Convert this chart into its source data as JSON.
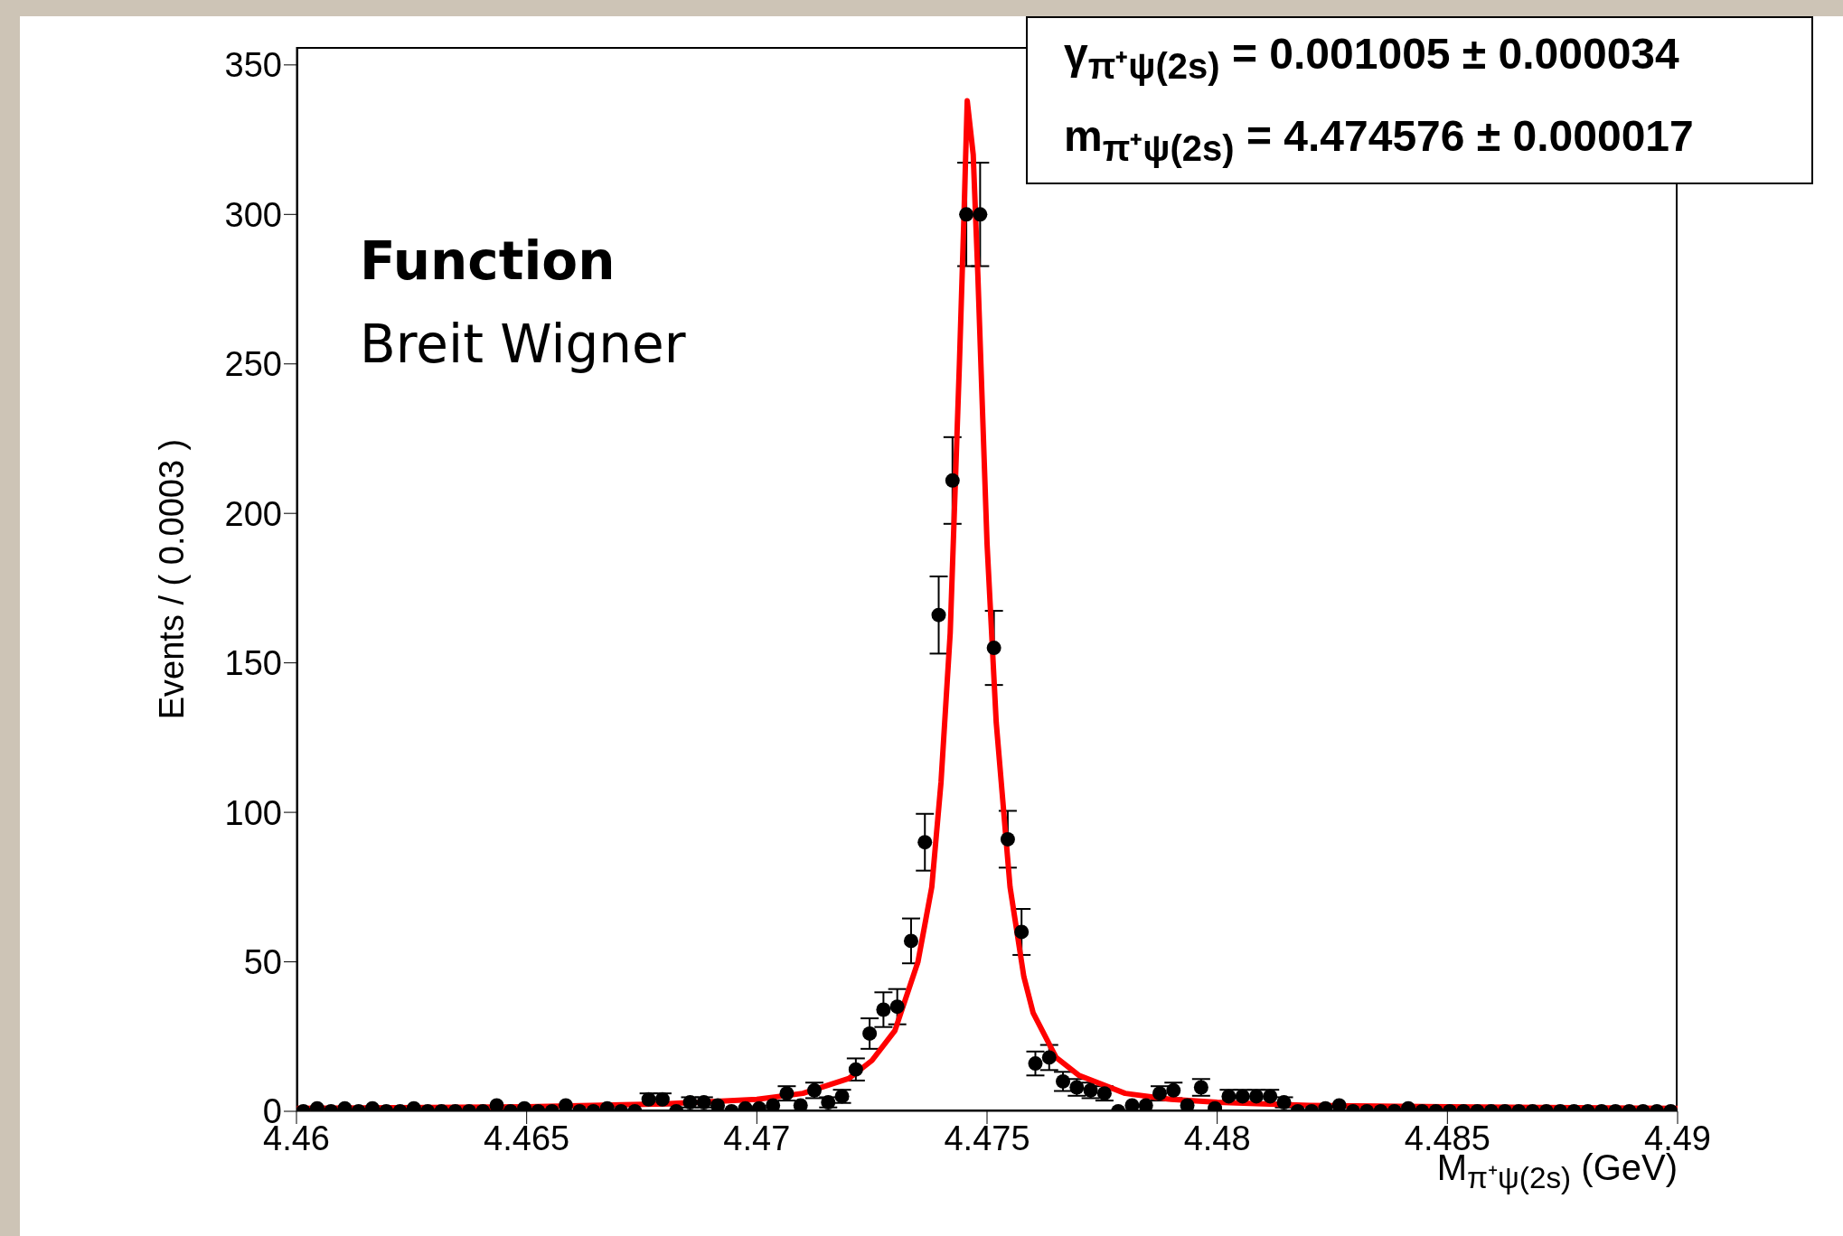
{
  "chart_data": {
    "type": "scatter",
    "xlabel": "M$_{π⁺ψ(2s)}$ (GeV)",
    "ylabel": "Events / ( 0.0003 )",
    "annotations": [
      "γ$_{π⁺ψ(2s)}$ =  0.001005 ± 0.000034",
      "m$_{π⁺ψ(2s)}$ =  4.474576 ± 0.000017",
      "Function",
      "Breit Wigner"
    ],
    "xlim": [
      4.46,
      4.49
    ],
    "xticks": [
      4.46,
      4.465,
      4.47,
      4.475,
      4.48,
      4.485,
      4.49
    ],
    "ylim": [
      0,
      356
    ],
    "yticks": [
      0,
      50,
      100,
      150,
      200,
      250,
      300,
      350
    ],
    "legend": false,
    "series": [
      {
        "type": "scatter",
        "color": "#000000",
        "marker": "circle",
        "x": [
          4.46015,
          4.46045,
          4.46075,
          4.46105,
          4.46135,
          4.46165,
          4.46195,
          4.46225,
          4.46255,
          4.46285,
          4.46315,
          4.46345,
          4.46375,
          4.46405,
          4.46435,
          4.46465,
          4.46495,
          4.46525,
          4.46555,
          4.46585,
          4.46615,
          4.46645,
          4.46675,
          4.46705,
          4.46735,
          4.46765,
          4.46795,
          4.46825,
          4.46855,
          4.46885,
          4.46915,
          4.46945,
          4.46975,
          4.47005,
          4.47035,
          4.47065,
          4.47095,
          4.47125,
          4.47155,
          4.47185,
          4.47215,
          4.47245,
          4.47275,
          4.47305,
          4.47335,
          4.47365,
          4.47395,
          4.47425,
          4.47455,
          4.47485,
          4.47515,
          4.47545,
          4.47575,
          4.47605,
          4.47635,
          4.47665,
          4.47695,
          4.47725,
          4.47755,
          4.47785,
          4.47815,
          4.47845,
          4.47875,
          4.47905,
          4.47935,
          4.47965,
          4.47995,
          4.48025,
          4.48055,
          4.48085,
          4.48115,
          4.48145,
          4.48175,
          4.48205,
          4.48235,
          4.48265,
          4.48295,
          4.48325,
          4.48355,
          4.48385,
          4.48415,
          4.48445,
          4.48475,
          4.48505,
          4.48535,
          4.48565,
          4.48595,
          4.48625,
          4.48655,
          4.48685,
          4.48715,
          4.48745,
          4.48775,
          4.48805,
          4.48835,
          4.48865,
          4.48895,
          4.48925,
          4.48955,
          4.48985
        ],
        "values": [
          0,
          1,
          0,
          1,
          0,
          1,
          0,
          0,
          1,
          0,
          0,
          0,
          0,
          0,
          2,
          0,
          1,
          0,
          0,
          2,
          0,
          0,
          1,
          0,
          0,
          4,
          4,
          0,
          3,
          3,
          2,
          0,
          1,
          1,
          2,
          6,
          2,
          7,
          3,
          5,
          14,
          26,
          34,
          35,
          57,
          90,
          166,
          211,
          300,
          300,
          155,
          91,
          60,
          16,
          18,
          10,
          8,
          7,
          6,
          0,
          2,
          2,
          6,
          7,
          2,
          8,
          1,
          5,
          5,
          5,
          5,
          3,
          0,
          0,
          1,
          2,
          0,
          0,
          0,
          0,
          1,
          0,
          0,
          0,
          0,
          0,
          0,
          0,
          0,
          0,
          0,
          0,
          0,
          0,
          0,
          0,
          0,
          0,
          0,
          0
        ],
        "errors": [
          null,
          null,
          null,
          null,
          null,
          null,
          null,
          null,
          null,
          null,
          null,
          null,
          null,
          null,
          null,
          null,
          null,
          null,
          null,
          null,
          null,
          null,
          null,
          null,
          null,
          2,
          2,
          null,
          1.7,
          1.7,
          null,
          null,
          null,
          null,
          null,
          2.4,
          null,
          2.6,
          1.7,
          2.2,
          3.7,
          5.1,
          5.8,
          5.9,
          7.5,
          9.5,
          12.9,
          14.5,
          17.3,
          17.3,
          12.4,
          9.5,
          7.7,
          4,
          4.2,
          3.2,
          2.8,
          2.6,
          2.4,
          null,
          null,
          null,
          2.4,
          2.6,
          null,
          2.8,
          null,
          2.2,
          2.2,
          2.2,
          2.2,
          1.7,
          null,
          null,
          null,
          null,
          null,
          null,
          null,
          null,
          null,
          null,
          null,
          null,
          null,
          null,
          null,
          null,
          null,
          null,
          null,
          null,
          null,
          null,
          null,
          null,
          null,
          null,
          null,
          null
        ]
      },
      {
        "type": "line",
        "color": "#ff0000",
        "marker": "none",
        "line_style": "solid",
        "x": [
          4.46,
          4.465,
          4.468,
          4.47,
          4.471,
          4.472,
          4.4725,
          4.473,
          4.4735,
          4.4738,
          4.474,
          4.4742,
          4.4744,
          4.4745,
          4.47457,
          4.4747,
          4.4748,
          4.475,
          4.4752,
          4.4755,
          4.4758,
          4.476,
          4.4765,
          4.477,
          4.478,
          4.479,
          4.48,
          4.482,
          4.485,
          4.49
        ],
        "values": [
          1,
          1.5,
          2.5,
          4,
          6,
          11,
          17,
          27,
          50,
          75,
          110,
          160,
          250,
          300,
          338,
          320,
          280,
          190,
          130,
          75,
          45,
          33,
          18,
          12,
          6,
          4,
          3,
          2,
          1.5,
          1
        ]
      }
    ]
  }
}
